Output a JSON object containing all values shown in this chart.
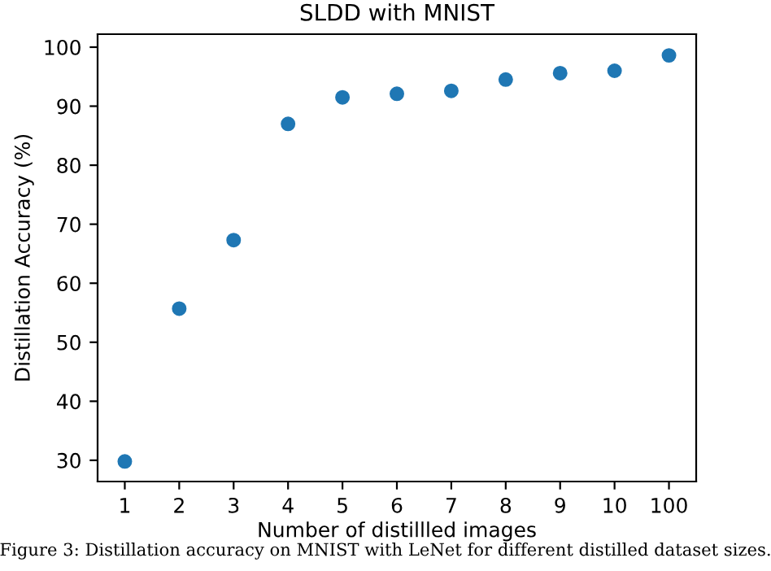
{
  "chart_data": {
    "type": "scatter",
    "title": "SLDD with MNIST",
    "xlabel": "Number of distillled images",
    "ylabel": "Distillation Accuracy (%)",
    "categories": [
      "1",
      "2",
      "3",
      "4",
      "5",
      "6",
      "7",
      "8",
      "9",
      "10",
      "100"
    ],
    "series": [
      {
        "color": "#1f77b4",
        "values": [
          29.8,
          55.7,
          67.3,
          87.0,
          91.5,
          92.1,
          92.6,
          94.5,
          95.6,
          96.0,
          98.6
        ]
      }
    ],
    "ylim": [
      26.4,
      102.2
    ],
    "yticks": [
      30,
      40,
      50,
      60,
      70,
      80,
      90,
      100
    ],
    "marker": "circle",
    "grid": false,
    "legend": false,
    "annotations": [
      "Figure 3: Distillation accuracy on MNIST with LeNet for different distilled dataset sizes."
    ]
  }
}
